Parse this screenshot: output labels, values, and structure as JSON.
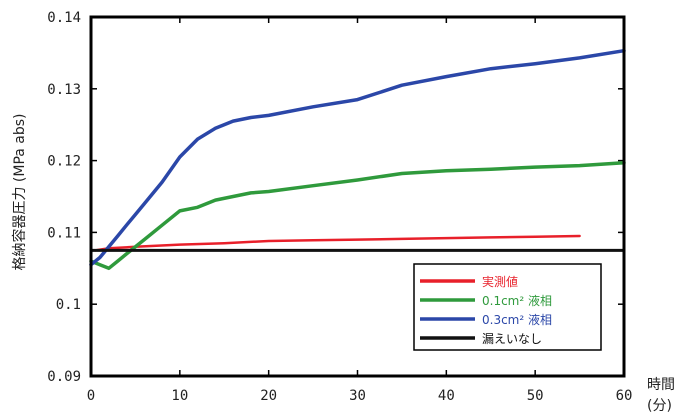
{
  "chart_data": {
    "type": "line",
    "xlabel": "時間",
    "xlabel_unit": "(分)",
    "ylabel": "格納容器圧力 (MPa abs)",
    "xlim": [
      0,
      60
    ],
    "ylim": [
      0.09,
      0.14
    ],
    "x_ticks": [
      "0",
      "10",
      "20",
      "30",
      "40",
      "50",
      "60"
    ],
    "y_ticks": [
      "0.09",
      "0.1",
      "0.11",
      "0.12",
      "0.13",
      "0.14"
    ],
    "x_tick_values": [
      0,
      10,
      20,
      30,
      40,
      50,
      60
    ],
    "y_tick_values": [
      0.09,
      0.1,
      0.11,
      0.12,
      0.13,
      0.14
    ],
    "grid": false,
    "legend_position": "bottom-right",
    "series": [
      {
        "name": "実測値",
        "color": "#e8202a",
        "x": [
          0.5,
          2,
          5,
          10,
          15,
          20,
          25,
          30,
          35,
          40,
          45,
          50,
          55
        ],
        "y": [
          0.1075,
          0.1078,
          0.108,
          0.1083,
          0.1085,
          0.1088,
          0.1089,
          0.109,
          0.1091,
          0.1092,
          0.1093,
          0.1094,
          0.1095
        ]
      },
      {
        "name": "0.1cm² 液相",
        "color": "#2f9a3c",
        "x": [
          0,
          1,
          2,
          3,
          4,
          5,
          6,
          8,
          10,
          12,
          14,
          16,
          18,
          20,
          25,
          30,
          35,
          40,
          45,
          50,
          55,
          60
        ],
        "y": [
          0.106,
          0.1055,
          0.105,
          0.106,
          0.107,
          0.108,
          0.109,
          0.111,
          0.113,
          0.1135,
          0.1145,
          0.115,
          0.1155,
          0.1157,
          0.1165,
          0.1173,
          0.1182,
          0.1186,
          0.1188,
          0.1191,
          0.1193,
          0.1197
        ]
      },
      {
        "name": "0.3cm² 液相",
        "color": "#2b47a8",
        "x": [
          0,
          1,
          2,
          3,
          4,
          5,
          6,
          8,
          10,
          12,
          14,
          16,
          18,
          20,
          25,
          30,
          35,
          40,
          45,
          50,
          55,
          60
        ],
        "y": [
          0.1055,
          0.1065,
          0.108,
          0.1095,
          0.111,
          0.1125,
          0.114,
          0.117,
          0.1205,
          0.123,
          0.1245,
          0.1255,
          0.126,
          0.1263,
          0.1275,
          0.1285,
          0.1305,
          0.1317,
          0.1328,
          0.1335,
          0.1343,
          0.1353
        ]
      },
      {
        "name": "漏えいなし",
        "color": "#111111",
        "x": [
          0,
          60
        ],
        "y": [
          0.1075,
          0.1075
        ]
      }
    ]
  }
}
